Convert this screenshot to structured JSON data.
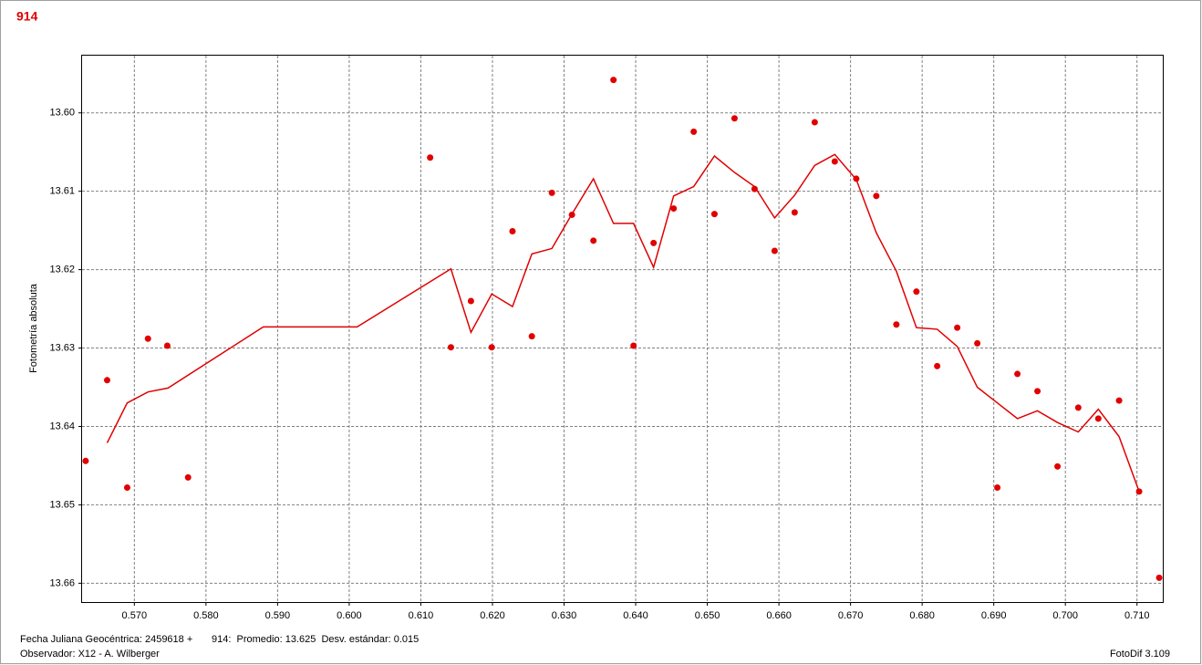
{
  "chart_data": {
    "type": "scatter",
    "title": "914",
    "ylabel": "Fotometría absoluta",
    "xlim": [
      0.5627,
      0.7136
    ],
    "ylim": [
      13.6624,
      13.5927
    ],
    "xticks": [
      {
        "value": 0.57,
        "label": "0.570"
      },
      {
        "value": 0.58,
        "label": "0.580"
      },
      {
        "value": 0.59,
        "label": "0.590"
      },
      {
        "value": 0.6,
        "label": "0.600"
      },
      {
        "value": 0.61,
        "label": "0.610"
      },
      {
        "value": 0.62,
        "label": "0.620"
      },
      {
        "value": 0.63,
        "label": "0.630"
      },
      {
        "value": 0.64,
        "label": "0.640"
      },
      {
        "value": 0.65,
        "label": "0.650"
      },
      {
        "value": 0.66,
        "label": "0.660"
      },
      {
        "value": 0.67,
        "label": "0.670"
      },
      {
        "value": 0.68,
        "label": "0.680"
      },
      {
        "value": 0.69,
        "label": "0.690"
      },
      {
        "value": 0.7,
        "label": "0.700"
      },
      {
        "value": 0.71,
        "label": "0.710"
      }
    ],
    "yticks": [
      {
        "value": 13.6,
        "label": "13.60"
      },
      13.61,
      13.62,
      13.63,
      13.64,
      13.65,
      13.66
    ],
    "grid": true,
    "color": "#e00000",
    "points": {
      "x": [
        0.5632,
        0.5662,
        0.569,
        0.5719,
        0.5746,
        0.5775,
        0.6113,
        0.6142,
        0.617,
        0.6199,
        0.6228,
        0.6255,
        0.6283,
        0.6311,
        0.6341,
        0.6369,
        0.6397,
        0.6425,
        0.6453,
        0.6481,
        0.651,
        0.6538,
        0.6566,
        0.6594,
        0.6622,
        0.665,
        0.6678,
        0.6708,
        0.6736,
        0.6764,
        0.6792,
        0.6821,
        0.6849,
        0.6877,
        0.6905,
        0.6933,
        0.6961,
        0.6989,
        0.7018,
        0.7046,
        0.7075,
        0.7103,
        0.7131
      ],
      "values": [
        13.6444,
        13.6341,
        13.6478,
        13.6288,
        13.6297,
        13.6465,
        13.6057,
        13.6299,
        13.624,
        13.6299,
        13.6151,
        13.6285,
        13.6102,
        13.613,
        13.6163,
        13.5958,
        13.6297,
        13.6166,
        13.6122,
        13.6024,
        13.6129,
        13.6007,
        13.6097,
        13.6176,
        13.6127,
        13.6012,
        13.6062,
        13.6084,
        13.6106,
        13.627,
        13.6228,
        13.6323,
        13.6274,
        13.6294,
        13.6478,
        13.6333,
        13.6355,
        13.6451,
        13.6376,
        13.639,
        13.6367,
        13.6483,
        13.6593
      ]
    },
    "line": {
      "x": [
        0.5662,
        0.569,
        0.5719,
        0.5747,
        0.588,
        0.6011,
        0.6142,
        0.617,
        0.6199,
        0.6228,
        0.6255,
        0.6283,
        0.6311,
        0.6341,
        0.6369,
        0.6397,
        0.6425,
        0.6453,
        0.6481,
        0.651,
        0.6538,
        0.6566,
        0.6594,
        0.6622,
        0.665,
        0.6678,
        0.6708,
        0.6736,
        0.6764,
        0.6792,
        0.6821,
        0.6849,
        0.6877,
        0.6905,
        0.6933,
        0.6961,
        0.6989,
        0.7018,
        0.7046,
        0.7075,
        0.7103
      ],
      "values": [
        13.6421,
        13.637,
        13.6356,
        13.6351,
        13.6273,
        13.6273,
        13.6199,
        13.628,
        13.6231,
        13.6247,
        13.618,
        13.6173,
        13.6129,
        13.6084,
        13.6141,
        13.6141,
        13.6197,
        13.6106,
        13.6094,
        13.6055,
        13.6076,
        13.6094,
        13.6134,
        13.6105,
        13.6067,
        13.6053,
        13.6085,
        13.6153,
        13.6202,
        13.6274,
        13.6276,
        13.6298,
        13.635,
        13.637,
        13.639,
        13.638,
        13.6395,
        13.6407,
        13.6378,
        13.6413,
        13.6483
      ]
    },
    "footer": {
      "date": "Fecha Juliana Geocéntrica: 2459618 +",
      "stats": "914:  Promedio: 13.625  Desv. estándar: 0.015",
      "observer": "Observador: X12 - A. Wilberger",
      "app": "FotoDif 3.109"
    }
  }
}
